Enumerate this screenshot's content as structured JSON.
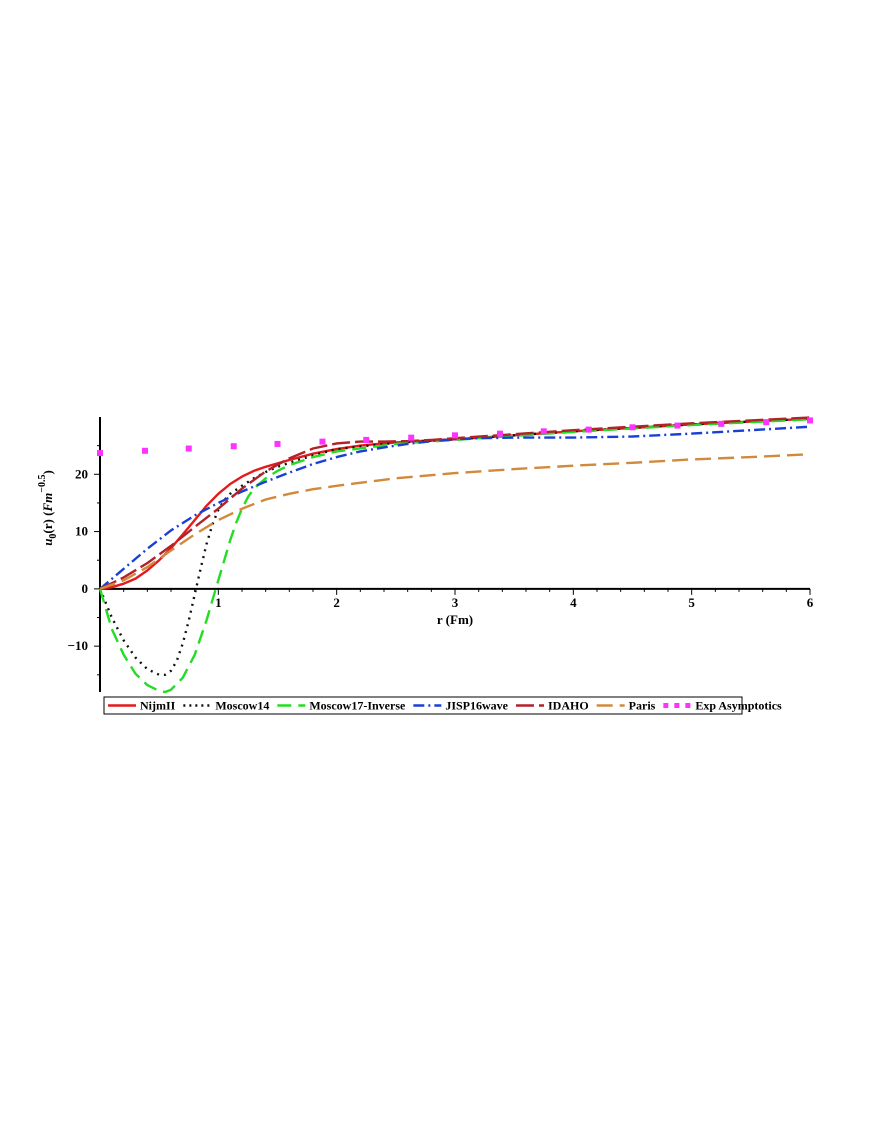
{
  "chart_data": {
    "type": "line",
    "xlabel": "r  (Fm)",
    "ylabel": {
      "u": "u",
      "sub": "0",
      "r": "(r)  (",
      "fm": "Fm",
      "sup": "−0.5",
      "close": ")"
    },
    "xlim": [
      0,
      6
    ],
    "ylim": [
      -18,
      30
    ],
    "x_ticks": [
      1,
      2,
      3,
      4,
      5,
      6
    ],
    "y_ticks": [
      -10,
      0,
      10,
      20
    ],
    "grid": false,
    "legend_position": "bottom",
    "series": [
      {
        "name": "NijmII",
        "color": "#e41a1c",
        "dash": "",
        "x": [
          0,
          0.1,
          0.2,
          0.3,
          0.4,
          0.5,
          0.6,
          0.7,
          0.8,
          0.9,
          1.0,
          1.1,
          1.2,
          1.3,
          1.4,
          1.5,
          1.6,
          1.8,
          2.0,
          2.2,
          2.4,
          2.6,
          2.8,
          3.0,
          3.5,
          4.0,
          4.5,
          5.0,
          5.5,
          6.0
        ],
        "y": [
          0,
          0.3,
          0.9,
          1.8,
          3.2,
          5.0,
          7.1,
          9.5,
          12.0,
          14.5,
          16.6,
          18.3,
          19.6,
          20.6,
          21.3,
          21.9,
          22.5,
          23.6,
          24.4,
          25.0,
          25.4,
          25.7,
          25.9,
          26.1,
          26.8,
          27.5,
          28.1,
          28.7,
          29.2,
          29.7
        ]
      },
      {
        "name": "Moscow14",
        "color": "#111111",
        "dash": "2,5",
        "x": [
          0,
          0.1,
          0.2,
          0.3,
          0.4,
          0.5,
          0.55,
          0.6,
          0.65,
          0.7,
          0.75,
          0.8,
          0.85,
          0.9,
          0.95,
          1.0,
          1.05,
          1.1,
          1.2,
          1.3,
          1.4,
          1.5,
          1.6,
          1.8,
          2.0,
          2.5,
          3.0,
          4.0,
          5.0,
          6.0
        ],
        "y": [
          0,
          -5.0,
          -9.0,
          -12.0,
          -14.0,
          -15.0,
          -15.0,
          -14.3,
          -12.5,
          -9.5,
          -5.5,
          -1.0,
          3.5,
          7.8,
          11.2,
          13.8,
          15.5,
          16.6,
          18.0,
          19.3,
          20.4,
          21.3,
          22.0,
          23.3,
          24.4,
          25.5,
          26.1,
          27.5,
          28.7,
          29.7
        ]
      },
      {
        "name": "Moscow17-Inverse",
        "color": "#22dd22",
        "dash": "14,7",
        "x": [
          0,
          0.1,
          0.2,
          0.3,
          0.4,
          0.5,
          0.55,
          0.6,
          0.7,
          0.8,
          0.9,
          0.95,
          1.0,
          1.05,
          1.1,
          1.15,
          1.2,
          1.25,
          1.3,
          1.4,
          1.5,
          1.6,
          1.8,
          2.0,
          2.5,
          3.0,
          4.0,
          5.0,
          6.0
        ],
        "y": [
          0,
          -7.0,
          -11.5,
          -14.8,
          -16.8,
          -17.8,
          -18.0,
          -17.6,
          -15.5,
          -11.5,
          -5.5,
          -2.0,
          1.5,
          5.0,
          8.5,
          11.5,
          14.0,
          16.0,
          17.5,
          19.3,
          20.6,
          21.6,
          23.0,
          24.0,
          25.3,
          26.0,
          27.4,
          28.6,
          29.6
        ]
      },
      {
        "name": "JISP16wave",
        "color": "#1a3fd6",
        "dash": "11,4,2,4",
        "x": [
          0,
          0.2,
          0.4,
          0.6,
          0.8,
          1.0,
          1.2,
          1.4,
          1.6,
          1.8,
          2.0,
          2.2,
          2.4,
          2.6,
          2.8,
          3.0,
          3.2,
          3.5,
          4.0,
          4.5,
          5.0,
          5.5,
          6.0
        ],
        "y": [
          0,
          3.5,
          7.0,
          10.2,
          12.8,
          15.0,
          17.0,
          18.7,
          20.3,
          21.8,
          23.0,
          24.0,
          24.7,
          25.3,
          25.8,
          26.1,
          26.3,
          26.4,
          26.4,
          26.6,
          27.1,
          27.7,
          28.3
        ]
      },
      {
        "name": "IDAHO",
        "color": "#b2222a",
        "dash": "18,5",
        "x": [
          0,
          0.2,
          0.4,
          0.6,
          0.8,
          1.0,
          1.2,
          1.4,
          1.6,
          1.8,
          2.0,
          2.2,
          2.4,
          2.6,
          2.8,
          3.0,
          3.5,
          4.0,
          4.5,
          5.0,
          5.5,
          6.0
        ],
        "y": [
          0,
          2.0,
          4.5,
          7.5,
          10.8,
          14.0,
          17.5,
          20.5,
          22.8,
          24.5,
          25.4,
          25.7,
          25.7,
          25.8,
          26.0,
          26.3,
          27.0,
          27.7,
          28.3,
          28.9,
          29.4,
          29.9
        ]
      },
      {
        "name": "Paris",
        "color": "#d1893c",
        "dash": "16,7",
        "x": [
          0,
          0.2,
          0.4,
          0.6,
          0.8,
          1.0,
          1.2,
          1.4,
          1.6,
          1.8,
          2.0,
          2.5,
          3.0,
          3.5,
          4.0,
          4.5,
          5.0,
          5.5,
          6.0
        ],
        "y": [
          0,
          1.5,
          3.8,
          6.7,
          9.5,
          12.0,
          14.0,
          15.6,
          16.6,
          17.4,
          18.0,
          19.3,
          20.2,
          20.9,
          21.5,
          22.0,
          22.6,
          23.0,
          23.5
        ]
      },
      {
        "name": "Exp Asymptotics",
        "color": "#ff33ff",
        "dash": "points",
        "x": [
          0.0,
          0.38,
          0.75,
          1.13,
          1.5,
          1.88,
          2.25,
          2.63,
          3.0,
          3.38,
          3.75,
          4.13,
          4.5,
          4.88,
          5.25,
          5.63,
          6.0
        ],
        "y": [
          23.7,
          24.1,
          24.5,
          24.9,
          25.3,
          25.7,
          26.0,
          26.4,
          26.8,
          27.1,
          27.5,
          27.8,
          28.2,
          28.5,
          28.8,
          29.1,
          29.4
        ]
      }
    ],
    "legend": [
      {
        "label": "NijmII",
        "series": 0
      },
      {
        "label": "Moscow14",
        "series": 1
      },
      {
        "label": "Moscow17-Inverse",
        "series": 2
      },
      {
        "label": "JISP16wave",
        "series": 3
      },
      {
        "label": "IDAHO",
        "series": 4
      },
      {
        "label": "Paris",
        "series": 5
      },
      {
        "label": "Exp Asymptotics",
        "series": 6
      }
    ]
  }
}
